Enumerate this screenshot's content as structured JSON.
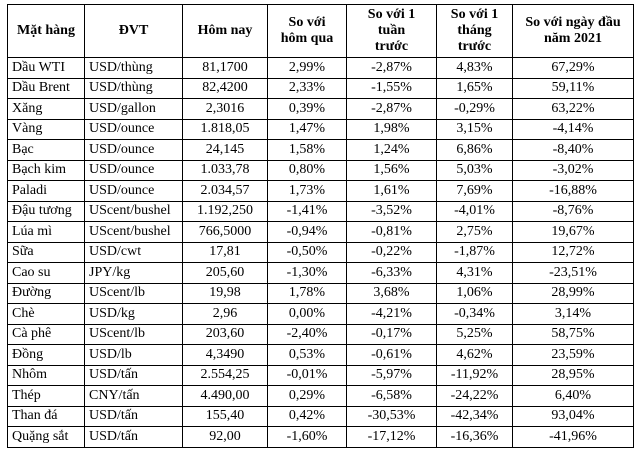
{
  "colors": {
    "background": "#ffffff",
    "border": "#000000",
    "text": "#000000"
  },
  "header_display": [
    "Mặt hàng",
    "ĐVT",
    "Hôm nay",
    "So với\nhôm qua",
    "So với 1\ntuần\ntrước",
    "So với 1\ntháng\ntrước",
    "So với ngày đầu\nnăm 2021"
  ],
  "column_keys": [
    "commodity",
    "unit",
    "today",
    "vs_yesterday",
    "vs_1_week_ago",
    "vs_1_month_ago",
    "vs_start_of_2021"
  ],
  "chart_data": {
    "type": "table",
    "columns": [
      "Mặt hàng",
      "ĐVT",
      "Hôm nay",
      "So với hôm qua",
      "So với 1 tuần trước",
      "So với 1 tháng trước",
      "So với ngày đầu năm 2021"
    ],
    "rows": [
      [
        "Dầu WTI",
        "USD/thùng",
        "81,1700",
        "2,99%",
        "-2,87%",
        "4,83%",
        "67,29%"
      ],
      [
        "Dầu Brent",
        "USD/thùng",
        "82,4200",
        "2,33%",
        "-1,55%",
        "1,65%",
        "59,11%"
      ],
      [
        "Xăng",
        "USD/gallon",
        "2,3016",
        "0,39%",
        "-2,87%",
        "-0,29%",
        "63,22%"
      ],
      [
        "Vàng",
        "USD/ounce",
        "1.818,05",
        "1,47%",
        "1,98%",
        "3,15%",
        "-4,14%"
      ],
      [
        "Bạc",
        "USD/ounce",
        "24,145",
        "1,58%",
        "1,24%",
        "6,86%",
        "-8,40%"
      ],
      [
        "Bạch kim",
        "USD/ounce",
        "1.033,78",
        "0,80%",
        "1,56%",
        "5,03%",
        "-3,02%"
      ],
      [
        "Paladi",
        "USD/ounce",
        "2.034,57",
        "1,73%",
        "1,61%",
        "7,69%",
        "-16,88%"
      ],
      [
        "Đậu tương",
        "UScent/bushel",
        "1.192,250",
        "-1,41%",
        "-3,52%",
        "-4,01%",
        "-8,76%"
      ],
      [
        "Lúa mì",
        "UScent/bushel",
        "766,5000",
        "-0,94%",
        "-0,81%",
        "2,75%",
        "19,67%"
      ],
      [
        "Sữa",
        "USD/cwt",
        "17,81",
        "-0,50%",
        "-0,22%",
        "-1,87%",
        "12,72%"
      ],
      [
        "Cao su",
        "JPY/kg",
        "205,60",
        "-1,30%",
        "-6,33%",
        "4,31%",
        "-23,51%"
      ],
      [
        "Đường",
        "UScent/lb",
        "19,98",
        "1,78%",
        "3,68%",
        "1,06%",
        "28,99%"
      ],
      [
        "Chè",
        "USD/kg",
        "2,96",
        "0,00%",
        "-4,21%",
        "-0,34%",
        "3,14%"
      ],
      [
        "Cà phê",
        "UScent/lb",
        "203,60",
        "-2,40%",
        "-0,17%",
        "5,25%",
        "58,75%"
      ],
      [
        "Đồng",
        "USD/lb",
        "4,3490",
        "0,53%",
        "-0,61%",
        "4,62%",
        "23,59%"
      ],
      [
        "Nhôm",
        "USD/tấn",
        "2.554,25",
        "-0,01%",
        "-5,97%",
        "-11,92%",
        "28,95%"
      ],
      [
        "Thép",
        "CNY/tấn",
        "4.490,00",
        "0,29%",
        "-6,58%",
        "-24,22%",
        "6,40%"
      ],
      [
        "Than đá",
        "USD/tấn",
        "155,40",
        "0,42%",
        "-30,53%",
        "-42,34%",
        "93,04%"
      ],
      [
        "Quặng sắt",
        "USD/tấn",
        "92,00",
        "-1,60%",
        "-17,12%",
        "-16,36%",
        "-41,96%"
      ]
    ]
  }
}
